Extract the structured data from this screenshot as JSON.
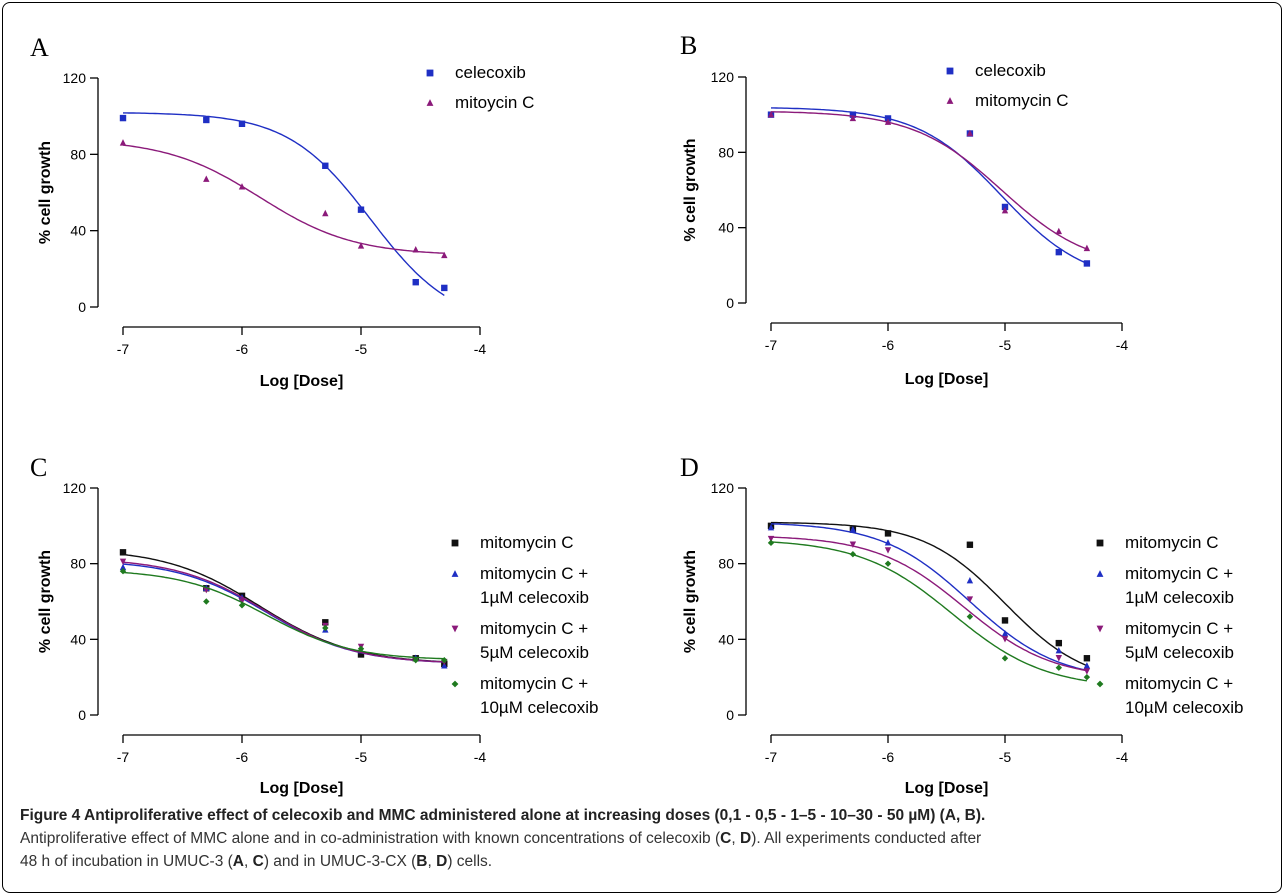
{
  "chart_data": [
    {
      "panel": "A",
      "type": "scatter",
      "xlabel": "Log [Dose]",
      "ylabel": "% cell growth",
      "xlim": [
        -7,
        -4
      ],
      "ylim": [
        0,
        120
      ],
      "xticks": [
        "-7",
        "-6",
        "-5",
        "-4"
      ],
      "yticks": [
        "0",
        "40",
        "80",
        "120"
      ],
      "legend_position": "top-right",
      "series": [
        {
          "name": "celecoxib",
          "marker": "square",
          "color": "#1f2fc4",
          "x": [
            -7,
            -6.3,
            -6,
            -5.3,
            -5,
            -4.54,
            -4.3
          ],
          "y": [
            99,
            98,
            96,
            74,
            51,
            13,
            10
          ],
          "fit": {
            "top": 102,
            "bottom": -10,
            "logec50": -4.92,
            "hill": 1.25
          }
        },
        {
          "name": "mitoycin C",
          "marker": "triangle-up",
          "color": "#8b1a7a",
          "x": [
            -7,
            -6.3,
            -6,
            -5.3,
            -5,
            -4.54,
            -4.3
          ],
          "y": [
            86,
            67,
            63,
            49,
            32,
            30,
            27
          ],
          "fit": {
            "top": 88,
            "bottom": 27,
            "logec50": -5.85,
            "hill": 1.1
          }
        }
      ]
    },
    {
      "panel": "B",
      "type": "scatter",
      "xlabel": "Log [Dose]",
      "ylabel": "% cell growth",
      "xlim": [
        -7,
        -4
      ],
      "ylim": [
        0,
        120
      ],
      "xticks": [
        "-7",
        "-6",
        "-5",
        "-4"
      ],
      "yticks": [
        "0",
        "40",
        "80",
        "120"
      ],
      "legend_position": "top-right",
      "series": [
        {
          "name": "celecoxib",
          "marker": "square",
          "color": "#1f2fc4",
          "x": [
            -7,
            -6.3,
            -6,
            -5.3,
            -5,
            -4.54,
            -4.3
          ],
          "y": [
            100,
            100,
            98,
            90,
            51,
            27,
            21
          ],
          "fit": {
            "top": 104,
            "bottom": 10,
            "logec50": -5.03,
            "hill": 1.2
          }
        },
        {
          "name": "mitomycin C",
          "marker": "triangle-up",
          "color": "#8b1a7a",
          "x": [
            -7,
            -6.3,
            -6,
            -5.3,
            -5,
            -4.54,
            -4.3
          ],
          "y": [
            100,
            98,
            96,
            90,
            49,
            38,
            29
          ],
          "fit": {
            "top": 102,
            "bottom": 18,
            "logec50": -5.03,
            "hill": 1.15
          }
        }
      ]
    },
    {
      "panel": "C",
      "type": "scatter",
      "xlabel": "Log [Dose]",
      "ylabel": "% cell growth",
      "xlim": [
        -7,
        -4
      ],
      "ylim": [
        0,
        120
      ],
      "xticks": [
        "-7",
        "-6",
        "-5",
        "-4"
      ],
      "yticks": [
        "0",
        "40",
        "80",
        "120"
      ],
      "legend_position": "right",
      "series": [
        {
          "name": "mitomycin C",
          "marker": "square",
          "color": "#111111",
          "x": [
            -7,
            -6.3,
            -6,
            -5.3,
            -5,
            -4.54,
            -4.3
          ],
          "y": [
            86,
            67,
            63,
            49,
            32,
            30,
            27
          ],
          "fit": {
            "top": 88,
            "bottom": 27,
            "logec50": -5.85,
            "hill": 1.1
          }
        },
        {
          "name": "mitomycin C + 1µM celecoxib",
          "marker": "triangle-up",
          "color": "#1f2fc4",
          "x": [
            -7,
            -6.3,
            -6,
            -5.3,
            -5,
            -4.54,
            -4.3
          ],
          "y": [
            78,
            67,
            62,
            45,
            34,
            30,
            26
          ],
          "fit": {
            "top": 82,
            "bottom": 27,
            "logec50": -5.8,
            "hill": 1.15
          }
        },
        {
          "name": "mitomycin C + 5µM celecoxib",
          "marker": "triangle-down",
          "color": "#8b1a7a",
          "x": [
            -7,
            -6.3,
            -6,
            -5.3,
            -5,
            -4.54,
            -4.3
          ],
          "y": [
            81,
            66,
            60,
            47,
            36,
            29,
            28
          ],
          "fit": {
            "top": 83,
            "bottom": 27,
            "logec50": -5.8,
            "hill": 1.15
          }
        },
        {
          "name": "mitomycin C + 10µM celecoxib",
          "marker": "diamond",
          "color": "#1f7a1f",
          "x": [
            -7,
            -6.3,
            -6,
            -5.3,
            -5,
            -4.54,
            -4.3
          ],
          "y": [
            76,
            60,
            58,
            46,
            35,
            29,
            29
          ],
          "fit": {
            "top": 77,
            "bottom": 29,
            "logec50": -5.8,
            "hill": 1.2
          }
        }
      ]
    },
    {
      "panel": "D",
      "type": "scatter",
      "xlabel": "Log [Dose]",
      "ylabel": "% cell growth",
      "xlim": [
        -7,
        -4
      ],
      "ylim": [
        0,
        120
      ],
      "xticks": [
        "-7",
        "-6",
        "-5",
        "-4"
      ],
      "yticks": [
        "0",
        "40",
        "80",
        "120"
      ],
      "legend_position": "right",
      "series": [
        {
          "name": "mitomycin C",
          "marker": "square",
          "color": "#111111",
          "x": [
            -7,
            -6.3,
            -6,
            -5.3,
            -5,
            -4.54,
            -4.3
          ],
          "y": [
            100,
            98,
            96,
            90,
            50,
            38,
            30
          ],
          "fit": {
            "top": 102,
            "bottom": 16,
            "logec50": -5.0,
            "hill": 1.25
          }
        },
        {
          "name": "mitomycin C + 1µM celecoxib",
          "marker": "triangle-up",
          "color": "#1f2fc4",
          "x": [
            -7,
            -6.3,
            -6,
            -5.3,
            -5,
            -4.54,
            -4.3
          ],
          "y": [
            99,
            98,
            91,
            71,
            43,
            34,
            26
          ],
          "fit": {
            "top": 102,
            "bottom": 18,
            "logec50": -5.3,
            "hill": 1.15
          }
        },
        {
          "name": "mitomycin C + 5µM celecoxib",
          "marker": "triangle-down",
          "color": "#8b1a7a",
          "x": [
            -7,
            -6.3,
            -6,
            -5.3,
            -5,
            -4.54,
            -4.3
          ],
          "y": [
            93,
            90,
            87,
            61,
            40,
            30,
            23
          ],
          "fit": {
            "top": 95,
            "bottom": 19,
            "logec50": -5.35,
            "hill": 1.15
          }
        },
        {
          "name": "mitomycin C + 10µM celecoxib",
          "marker": "diamond",
          "color": "#1f7a1f",
          "x": [
            -7,
            -6.3,
            -6,
            -5.3,
            -5,
            -4.54,
            -4.3
          ],
          "y": [
            91,
            85,
            80,
            52,
            30,
            25,
            20
          ],
          "fit": {
            "top": 93,
            "bottom": 14,
            "logec50": -5.45,
            "hill": 1.1
          }
        }
      ]
    }
  ],
  "legend_labels": {
    "A": [
      [
        "celecoxib"
      ],
      [
        "mitoycin C"
      ]
    ],
    "B": [
      [
        "celecoxib"
      ],
      [
        "mitomycin C"
      ]
    ],
    "C": [
      [
        "mitomycin C"
      ],
      [
        "mitomycin C +",
        "1µM celecoxib"
      ],
      [
        "mitomycin C +",
        "5µM celecoxib"
      ],
      [
        "mitomycin C +",
        "10µM celecoxib"
      ]
    ],
    "D": [
      [
        "mitomycin C"
      ],
      [
        "mitomycin C +",
        "1µM celecoxib"
      ],
      [
        "mitomycin C +",
        "5µM celecoxib"
      ],
      [
        "mitomycin C +",
        "10µM celecoxib"
      ]
    ]
  },
  "caption": {
    "title": "Figure 4 Antiproliferative effect of celecoxib and MMC administered alone at increasing doses (0,1 - 0,5 - 1–5 - 10–30 - 50 µM) (A, B).",
    "line2_a": "Antiproliferative effect of MMC alone and in co-administration with known concentrations of celecoxib (",
    "C": "C",
    "sep": ", ",
    "D": "D",
    "line2_b": "). All experiments conducted after",
    "line3_a": "48 h of incubation in UMUC-3 (",
    "A": "A",
    "line3_b": ") and in UMUC-3-CX (",
    "B": "B",
    "line3_c": ") cells."
  }
}
